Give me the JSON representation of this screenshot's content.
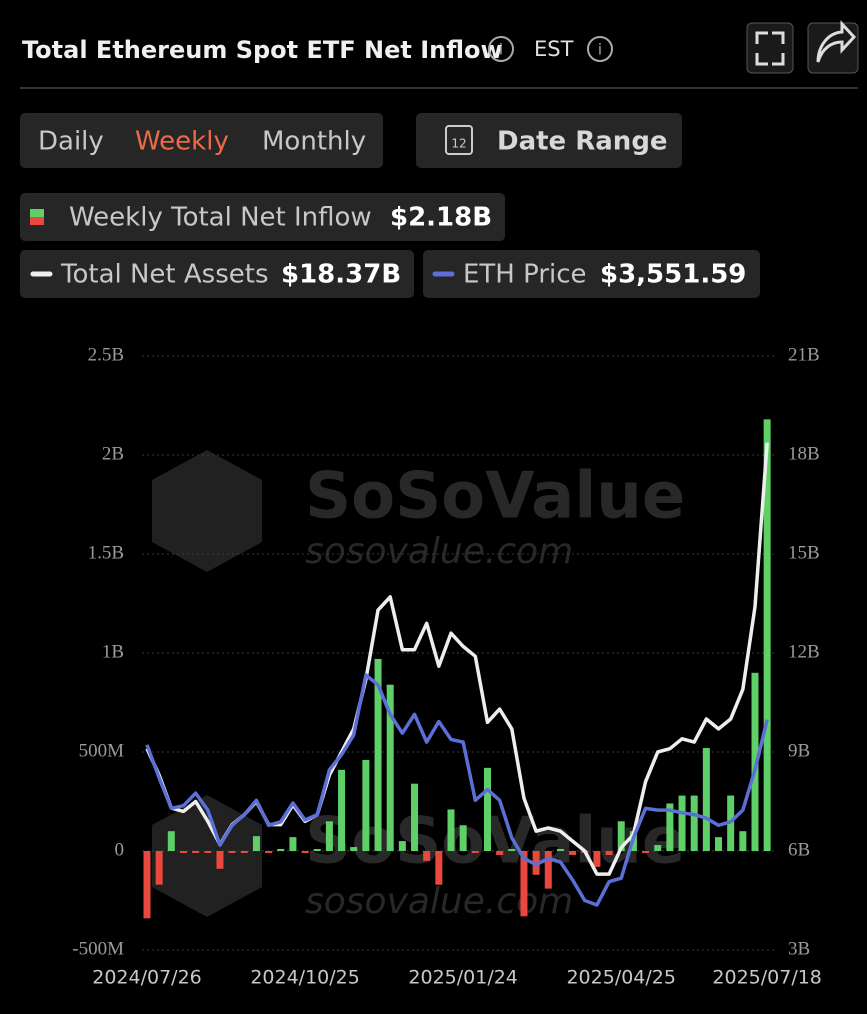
{
  "header": {
    "title": "Total Ethereum Spot ETF Net Inflow",
    "timezone": "EST",
    "tabs": [
      "Daily",
      "Weekly",
      "Monthly"
    ],
    "active_tab": 1,
    "calendar_day": "12",
    "date_range": "Date Range"
  },
  "watermark": {
    "brand": "SoSoValue",
    "url": "sosovalue.com"
  },
  "chart_data": {
    "type": "bar-line",
    "categories": [
      "2024/07/26",
      null,
      null,
      null,
      null,
      null,
      null,
      null,
      null,
      null,
      null,
      null,
      null,
      "2024/10/25",
      null,
      null,
      null,
      null,
      null,
      null,
      null,
      null,
      null,
      null,
      null,
      null,
      "2025/01/24",
      null,
      null,
      null,
      null,
      null,
      null,
      null,
      null,
      null,
      null,
      null,
      null,
      "2025/04/25",
      null,
      null,
      null,
      null,
      null,
      null,
      null,
      null,
      null,
      null,
      null,
      "2025/07/18"
    ],
    "header_values": [
      "$2.18B",
      "$18.37B",
      "$3,551.59"
    ],
    "series": [
      {
        "name": "Weekly Total Net Inflow",
        "type": "bar",
        "positive_color": "#5fd068",
        "negative_color": "#e8483d",
        "values": [
          -0.34,
          -0.17,
          0.1,
          -0.01,
          -0.01,
          -0.01,
          -0.09,
          -0.01,
          -0.01,
          0.075,
          -0.005,
          0,
          0.07,
          -0.01,
          0.01,
          0.15,
          0.41,
          0.02,
          0.46,
          0.97,
          0.84,
          0.05,
          0.34,
          -0.05,
          -0.17,
          0.21,
          0.13,
          -0.01,
          0.42,
          -0.02,
          0,
          -0.33,
          -0.12,
          -0.19,
          0.01,
          -0.02,
          -0.01,
          -0.08,
          -0.02,
          0.15,
          0.1,
          -0.01,
          0.03,
          0.24,
          0.28,
          0.28,
          0.52,
          0.07,
          0.28,
          0.1,
          0.9,
          2.18
        ]
      },
      {
        "name": "Total Net Assets",
        "type": "line",
        "axis": "y2",
        "color": "#eeeeee",
        "values": [
          9.1,
          8.3,
          7.3,
          7.2,
          7.5,
          6.9,
          6.2,
          6.8,
          7.1,
          7.5,
          6.8,
          6.8,
          7.4,
          6.9,
          7.1,
          8.3,
          9.0,
          9.7,
          11.2,
          13.3,
          13.7,
          12.1,
          12.1,
          12.9,
          11.6,
          12.6,
          12.2,
          11.9,
          9.9,
          10.3,
          9.7,
          7.6,
          6.6,
          6.7,
          6.6,
          6.3,
          6.0,
          5.3,
          5.3,
          6.1,
          6.5,
          8.1,
          9.0,
          9.1,
          9.4,
          9.3,
          10.0,
          9.7,
          10.0,
          10.9,
          13.4,
          18.37
        ]
      },
      {
        "name": "ETH Price",
        "type": "line",
        "axis": "own",
        "color": "#5b6fd6",
        "values": [
          3270,
          2900,
          2560,
          2590,
          2730,
          2540,
          2150,
          2370,
          2490,
          2650,
          2370,
          2410,
          2620,
          2430,
          2490,
          2990,
          3160,
          3380,
          4050,
          3940,
          3610,
          3400,
          3610,
          3300,
          3530,
          3330,
          3300,
          2650,
          2770,
          2650,
          2230,
          2000,
          1930,
          2000,
          1960,
          1760,
          1530,
          1480,
          1740,
          1780,
          2230,
          2560,
          2540,
          2540,
          2510,
          2490,
          2450,
          2370,
          2410,
          2540,
          2990,
          3551.59
        ]
      }
    ],
    "ylim": [
      -0.5,
      2.5
    ],
    "yticks": [
      {
        "value": -0.5,
        "label": "-500M"
      },
      0,
      {
        "value": 0.5,
        "label": "500M"
      },
      {
        "value": 1,
        "label": "1B"
      },
      {
        "value": 1.5,
        "label": "1.5B"
      },
      {
        "value": 2,
        "label": "2B"
      },
      {
        "value": 2.5,
        "label": "2.5B"
      }
    ],
    "y2lim": [
      3,
      21
    ],
    "y2ticks": [
      {
        "value": 3,
        "label": "3B"
      },
      {
        "value": 6,
        "label": "6B"
      },
      {
        "value": 9,
        "label": "9B"
      },
      {
        "value": 12,
        "label": "12B"
      },
      {
        "value": 15,
        "label": "15B"
      },
      {
        "value": 18,
        "label": "18B"
      },
      {
        "value": 21,
        "label": "21B"
      }
    ],
    "grid": true
  }
}
